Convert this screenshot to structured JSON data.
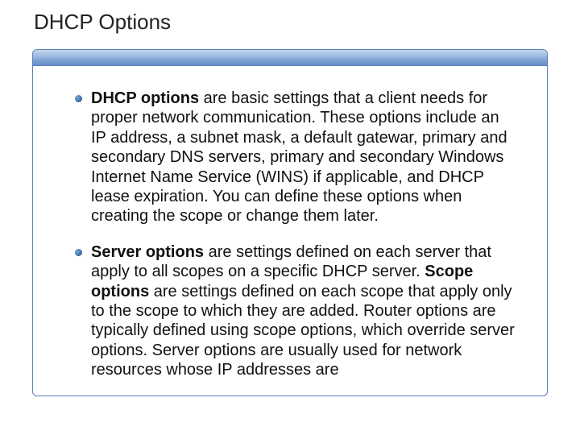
{
  "slide": {
    "title": "DHCP Options",
    "bullets": [
      {
        "segments": [
          {
            "text": "DHCP options",
            "bold": true
          },
          {
            "text": " are basic settings that a client needs for proper network communication. These options include an IP address, a subnet mask, a default gatewar, primary and secondary DNS servers, primary and secondary Windows Internet Name Service (WINS) if applicable, and DHCP lease expiration. You can define these options when creating the scope or change them later.",
            "bold": false
          }
        ]
      },
      {
        "segments": [
          {
            "text": "Server options",
            "bold": true
          },
          {
            "text": " are settings defined on each server that apply to all scopes on a specific DHCP server. ",
            "bold": false
          },
          {
            "text": "Scope options",
            "bold": true
          },
          {
            "text": " are settings defined on each scope that apply only to the scope to which they are added. Router options are typically defined using scope options, which override server options. Server options are usually used for network resources whose IP addresses are",
            "bold": false
          }
        ]
      }
    ]
  },
  "styles": {
    "title_color": "#222222",
    "title_fontsize": 26,
    "body_fontsize": 20,
    "body_color": "#111111",
    "bullet_color_inner": "#7aa8d8",
    "bullet_color_outer": "#2a5488",
    "box_border": "#5a7fb8",
    "topbar_gradient_top": "#c2d7ec",
    "topbar_gradient_bottom": "#6891c8",
    "background": "#ffffff"
  }
}
